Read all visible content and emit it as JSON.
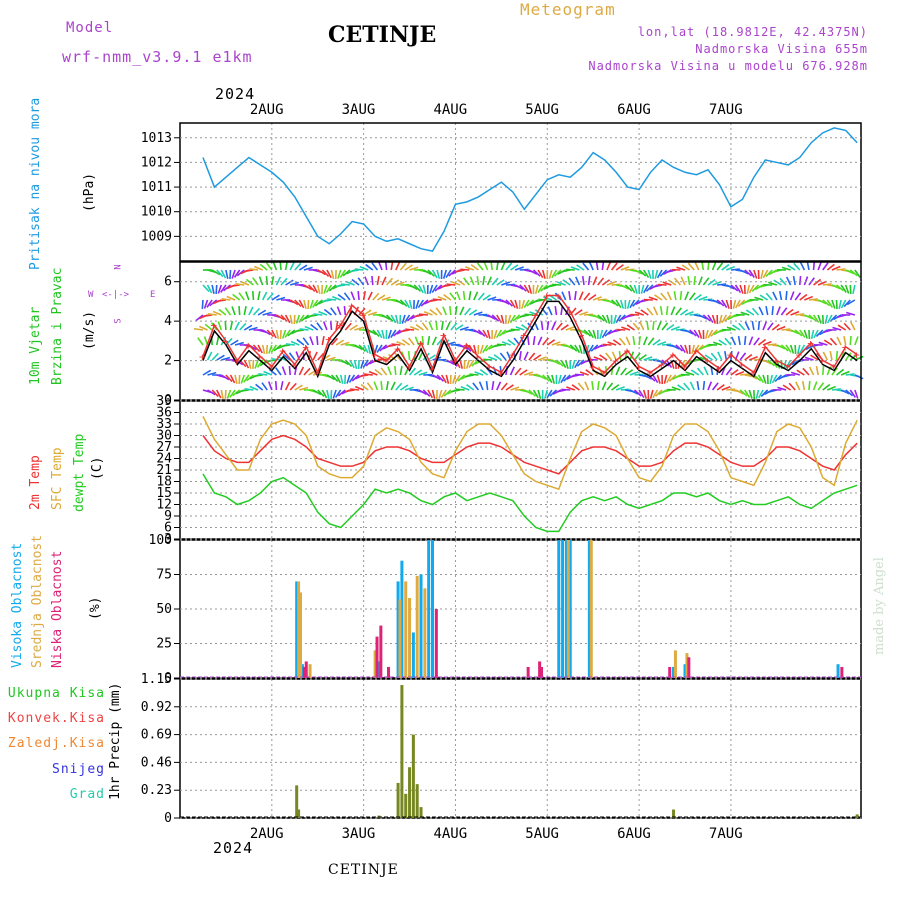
{
  "header": {
    "model_label": "Model",
    "model_name": "wrf-nmm_v3.9.1  e1km",
    "station": "CETINJE",
    "meteogram": "Meteogram",
    "lonlat": "lon,lat (18.9812E, 42.4375N)",
    "elevation": "Nadmorska Visina 655m",
    "model_elevation": "Nadmorska Visina u modelu 676.928m",
    "year_top": "2024",
    "year_bottom": "2024",
    "footer": "CETINJE",
    "watermark": "made by Angel"
  },
  "colors": {
    "pressure": "#1e9be0",
    "wind_label": "#22c522",
    "temp2m": "#ee3333",
    "sfc": "#ddaa33",
    "dewpt": "#22cc22",
    "high": "#11aaee",
    "mid": "#ddaa44",
    "low": "#dd2277",
    "precip": "#778822",
    "snow": "#3333dd",
    "graupel": "#22ccaa",
    "convective": "#ee4444",
    "frozen": "#ee8833",
    "compass": "#aa44cc"
  },
  "axis": {
    "day_labels": [
      "2AUG",
      "3AUG",
      "4AUG",
      "5AUG",
      "6AUG",
      "7AUG"
    ]
  },
  "panels": {
    "pressure": {
      "label": "Pritisak na nivou mora",
      "unit": "(hPa)"
    },
    "wind": {
      "label1": "10m Vjetar",
      "label2": "Brzina i Pravac",
      "unit": "(m/s)",
      "compass_n": "N",
      "compass_s": "S",
      "compass_w": "W",
      "compass_e": "E"
    },
    "temp": {
      "label1": "2m Temp",
      "label2": "SFC Temp",
      "label3": "dewpt Temp",
      "unit": "(C)"
    },
    "cloud": {
      "label1": "Visoka Oblacnost",
      "label2": "Srednja Oblacnost",
      "label3": "Niska Oblacnost",
      "unit": "(%)"
    },
    "precip": {
      "l1": "Ukupna Kisa",
      "l2": "Konvek.Kisa",
      "l3": "Zaledj.Kisa",
      "l4": "Snijeg",
      "l5": "Grad",
      "unit": "1hr Precip (mm)"
    }
  },
  "chart_data": [
    {
      "type": "line",
      "panel": "pressure",
      "ylabel": "(hPa)",
      "ylim": [
        1008,
        1013.6
      ],
      "yticks": [
        1009,
        1010,
        1011,
        1012,
        1013
      ],
      "grid": true,
      "x_hours": [
        0,
        3,
        6,
        9,
        12,
        15,
        18,
        21,
        24,
        27,
        30,
        33,
        36,
        39,
        42,
        45,
        48,
        51,
        54,
        57,
        60,
        63,
        66,
        69,
        72,
        75,
        78,
        81,
        84,
        87,
        90,
        93,
        96,
        99,
        102,
        105,
        108,
        111,
        114,
        117,
        120,
        123,
        126,
        129,
        132,
        135,
        138,
        141,
        144,
        147,
        150,
        153,
        156,
        159,
        162,
        165,
        168,
        171
      ],
      "series": [
        {
          "values": [
            1012.2,
            1011.0,
            1011.4,
            1011.8,
            1012.2,
            1011.9,
            1011.6,
            1011.2,
            1010.6,
            1009.8,
            1009.0,
            1008.7,
            1009.1,
            1009.6,
            1009.5,
            1009.0,
            1008.8,
            1008.9,
            1008.7,
            1008.5,
            1008.4,
            1009.2,
            1010.3,
            1010.4,
            1010.6,
            1010.9,
            1011.2,
            1010.8,
            1010.1,
            1010.7,
            1011.3,
            1011.5,
            1011.4,
            1011.8,
            1012.4,
            1012.1,
            1011.6,
            1011.0,
            1010.9,
            1011.6,
            1012.1,
            1011.8,
            1011.6,
            1011.5,
            1011.7,
            1011.1,
            1010.2,
            1010.5,
            1011.4,
            1012.1,
            1012.0,
            1011.9,
            1012.2,
            1012.8,
            1013.2,
            1013.4,
            1013.3,
            1012.8
          ]
        }
      ]
    },
    {
      "type": "line",
      "panel": "wind",
      "ylabel": "(m/s)",
      "ylim": [
        0,
        7
      ],
      "yticks": [
        0,
        2,
        4,
        6
      ],
      "grid": true,
      "x_hours": [
        0,
        3,
        6,
        9,
        12,
        15,
        18,
        21,
        24,
        27,
        30,
        33,
        36,
        39,
        42,
        45,
        48,
        51,
        54,
        57,
        60,
        63,
        66,
        69,
        72,
        75,
        78,
        81,
        84,
        87,
        90,
        93,
        96,
        99,
        102,
        105,
        108,
        111,
        114,
        117,
        120,
        123,
        126,
        129,
        132,
        135,
        138,
        141,
        144,
        147,
        150,
        153,
        156,
        159,
        162,
        165,
        168,
        171
      ],
      "series": [
        {
          "name": "",
          "values": [
            2.0,
            3.5,
            2.8,
            1.8,
            2.5,
            2.0,
            1.5,
            2.2,
            1.6,
            2.4,
            1.2,
            2.8,
            3.5,
            4.5,
            4.0,
            2.0,
            1.8,
            2.3,
            1.5,
            2.6,
            1.4,
            3.0,
            1.8,
            2.5,
            2.0,
            1.5,
            1.2,
            2.0,
            3.0,
            4.0,
            5.0,
            5.0,
            4.2,
            3.0,
            1.5,
            1.2,
            1.8,
            2.2,
            1.5,
            1.2,
            1.6,
            2.0,
            1.5,
            2.2,
            1.8,
            1.4,
            2.0,
            1.6,
            1.2,
            2.4,
            1.8,
            1.5,
            2.0,
            2.6,
            1.8,
            1.5,
            2.4,
            2.0
          ]
        },
        {
          "name": "",
          "values": [
            2.2,
            3.8,
            3.0,
            2.0,
            2.8,
            2.2,
            1.7,
            2.5,
            1.8,
            2.7,
            1.4,
            3.1,
            3.8,
            4.8,
            4.3,
            2.3,
            2.0,
            2.6,
            1.7,
            2.9,
            1.6,
            3.3,
            2.0,
            2.8,
            2.2,
            1.7,
            1.4,
            2.3,
            3.3,
            4.3,
            5.3,
            5.3,
            4.5,
            3.3,
            1.7,
            1.4,
            2.0,
            2.5,
            1.7,
            1.4,
            1.8,
            2.3,
            1.7,
            2.5,
            2.0,
            1.6,
            2.3,
            1.8,
            1.4,
            2.7,
            2.0,
            1.7,
            2.3,
            2.9,
            2.0,
            1.7,
            2.7,
            2.3
          ]
        }
      ]
    },
    {
      "type": "line",
      "panel": "temperature",
      "ylabel": "(C)",
      "ylim": [
        3,
        39
      ],
      "yticks": [
        3,
        6,
        9,
        12,
        15,
        18,
        21,
        24,
        27,
        30,
        33,
        36,
        39
      ],
      "grid": true,
      "x_hours": [
        0,
        3,
        6,
        9,
        12,
        15,
        18,
        21,
        24,
        27,
        30,
        33,
        36,
        39,
        42,
        45,
        48,
        51,
        54,
        57,
        60,
        63,
        66,
        69,
        72,
        75,
        78,
        81,
        84,
        87,
        90,
        93,
        96,
        99,
        102,
        105,
        108,
        111,
        114,
        117,
        120,
        123,
        126,
        129,
        132,
        135,
        138,
        141,
        144,
        147,
        150,
        153,
        156,
        159,
        162,
        165,
        168,
        171
      ],
      "series": [
        {
          "name": "2m Temp",
          "values": [
            30,
            26,
            24,
            23,
            23,
            26,
            29,
            30,
            29,
            27,
            24,
            23,
            22,
            22,
            23,
            26,
            27,
            27,
            26,
            24,
            23,
            23,
            25,
            27,
            28,
            28,
            27,
            25,
            23,
            22,
            21,
            20,
            23,
            26,
            27,
            27,
            26,
            24,
            22,
            22,
            23,
            26,
            28,
            28,
            27,
            25,
            23,
            22,
            22,
            24,
            27,
            27,
            26,
            24,
            22,
            21,
            25,
            28
          ]
        },
        {
          "name": "SFC Temp",
          "values": [
            35,
            29,
            25,
            21,
            21,
            29,
            33,
            34,
            33,
            30,
            22,
            20,
            19,
            19,
            22,
            30,
            32,
            31,
            29,
            23,
            20,
            19,
            26,
            31,
            33,
            33,
            30,
            25,
            20,
            18,
            17,
            16,
            24,
            31,
            33,
            32,
            30,
            24,
            19,
            18,
            22,
            30,
            33,
            33,
            31,
            26,
            19,
            18,
            17,
            23,
            31,
            33,
            32,
            27,
            19,
            17,
            28,
            34
          ]
        },
        {
          "name": "dewpt Temp",
          "values": [
            20,
            15,
            14,
            12,
            13,
            15,
            18,
            19,
            17,
            15,
            10,
            7,
            6,
            9,
            12,
            16,
            15,
            16,
            15,
            13,
            12,
            14,
            15,
            13,
            14,
            15,
            14,
            13,
            9,
            6,
            5,
            5,
            10,
            13,
            14,
            13,
            14,
            12,
            11,
            12,
            13,
            15,
            15,
            14,
            15,
            13,
            12,
            13,
            12,
            12,
            13,
            14,
            12,
            11,
            13,
            15,
            16,
            17
          ]
        }
      ]
    },
    {
      "type": "bar",
      "panel": "cloud",
      "ylabel": "(%)",
      "ylim": [
        0,
        100
      ],
      "yticks": [
        0,
        25,
        50,
        75,
        100
      ],
      "grid": true,
      "series": [
        {
          "name": "Visoka Oblacnost",
          "points": [
            [
              24.5,
              70
            ],
            [
              26.0,
              10
            ],
            [
              46.0,
              12
            ],
            [
              51.0,
              70
            ],
            [
              52.0,
              85
            ],
            [
              55.0,
              33
            ],
            [
              57.0,
              75
            ],
            [
              59.0,
              100
            ],
            [
              60.0,
              100
            ],
            [
              93.0,
              100
            ],
            [
              94.0,
              100
            ],
            [
              95.0,
              100
            ],
            [
              96.0,
              100
            ],
            [
              101.0,
              100
            ],
            [
              123.0,
              8
            ],
            [
              126.0,
              10
            ],
            [
              166.0,
              10
            ]
          ]
        },
        {
          "name": "Srednja Oblacnost",
          "points": [
            [
              25.0,
              70
            ],
            [
              25.5,
              62
            ],
            [
              28.0,
              10
            ],
            [
              45.0,
              20
            ],
            [
              51.5,
              57
            ],
            [
              53.0,
              70
            ],
            [
              54.0,
              58
            ],
            [
              56.0,
              74
            ],
            [
              58.0,
              65
            ],
            [
              95.5,
              100
            ],
            [
              101.5,
              100
            ],
            [
              123.5,
              20
            ],
            [
              126.5,
              18
            ]
          ]
        },
        {
          "name": "Niska Oblacnost",
          "points": [
            [
              26.5,
              8
            ],
            [
              27.0,
              12
            ],
            [
              45.5,
              30
            ],
            [
              46.5,
              38
            ],
            [
              48.5,
              8
            ],
            [
              61.0,
              50
            ],
            [
              85.0,
              8
            ],
            [
              88.0,
              12
            ],
            [
              88.5,
              8
            ],
            [
              122.0,
              8
            ],
            [
              127.0,
              15
            ],
            [
              167.0,
              8
            ]
          ]
        }
      ]
    },
    {
      "type": "bar",
      "panel": "precipitation",
      "ylabel": "1hr Precip (mm)",
      "ylim": [
        0,
        1.15
      ],
      "yticks": [
        0,
        0.23,
        0.46,
        0.69,
        0.92,
        1.15
      ],
      "grid": true,
      "series": [
        {
          "name": "Ukupna Kisa",
          "points": [
            [
              24.5,
              0.27
            ],
            [
              25.0,
              0.07
            ],
            [
              46.0,
              0.02
            ],
            [
              51.0,
              0.29
            ],
            [
              52.0,
              1.1
            ],
            [
              53.0,
              0.2
            ],
            [
              54.0,
              0.42
            ],
            [
              55.0,
              0.69
            ],
            [
              56.0,
              0.28
            ],
            [
              57.0,
              0.09
            ],
            [
              123.0,
              0.07
            ],
            [
              171.0,
              0.03
            ]
          ]
        }
      ]
    }
  ]
}
